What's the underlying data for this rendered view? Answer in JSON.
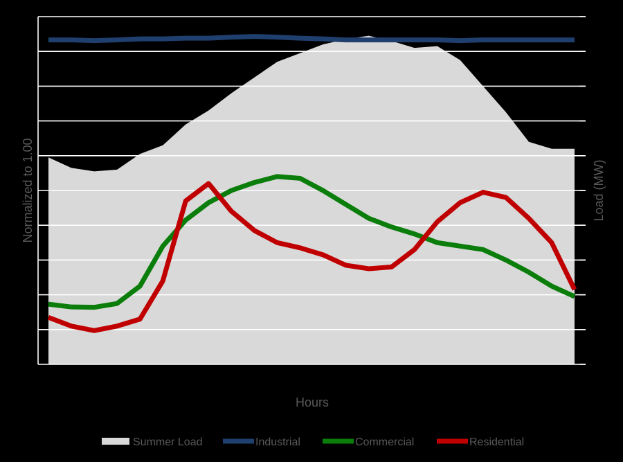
{
  "chart_data": {
    "type": "line",
    "title": "",
    "xlabel": "Hours",
    "ylabel_left": "Normalized to 1.00",
    "ylabel_right": "Load (MW)",
    "ylim": [
      0,
      10
    ],
    "y_gridlines": 10,
    "grid": true,
    "legend_position": "bottom",
    "x": [
      1,
      2,
      3,
      4,
      5,
      6,
      7,
      8,
      9,
      10,
      11,
      12,
      13,
      14,
      15,
      16,
      17,
      18,
      19,
      20,
      21,
      22,
      23,
      24
    ],
    "series": [
      {
        "name": "Summer Load",
        "type": "area",
        "color": "#d9d9d9",
        "values": [
          5.95,
          5.65,
          5.55,
          5.6,
          6.05,
          6.3,
          6.9,
          7.3,
          7.8,
          8.25,
          8.7,
          8.95,
          9.2,
          9.35,
          9.45,
          9.3,
          9.1,
          9.15,
          8.75,
          8.0,
          7.25,
          6.4,
          6.2,
          6.2
        ]
      },
      {
        "name": "Industrial",
        "type": "line",
        "color": "#1f3f6e",
        "values": [
          9.33,
          9.33,
          9.31,
          9.33,
          9.36,
          9.36,
          9.38,
          9.38,
          9.41,
          9.43,
          9.41,
          9.38,
          9.36,
          9.33,
          9.33,
          9.33,
          9.33,
          9.33,
          9.31,
          9.33,
          9.33,
          9.33,
          9.33,
          9.33
        ]
      },
      {
        "name": "Commercial",
        "type": "line",
        "color": "#0a7d0a",
        "values": [
          1.73,
          1.65,
          1.64,
          1.75,
          2.25,
          3.4,
          4.15,
          4.65,
          5.0,
          5.23,
          5.4,
          5.35,
          5.0,
          4.6,
          4.2,
          3.95,
          3.75,
          3.5,
          3.4,
          3.3,
          3.0,
          2.65,
          2.25,
          1.95
        ]
      },
      {
        "name": "Residential",
        "type": "line",
        "color": "#c00000",
        "values": [
          1.35,
          1.1,
          0.97,
          1.1,
          1.3,
          2.4,
          4.7,
          5.2,
          4.4,
          3.85,
          3.5,
          3.35,
          3.15,
          2.85,
          2.75,
          2.8,
          3.3,
          4.1,
          4.65,
          4.95,
          4.8,
          4.2,
          3.5,
          2.15
        ]
      }
    ]
  }
}
